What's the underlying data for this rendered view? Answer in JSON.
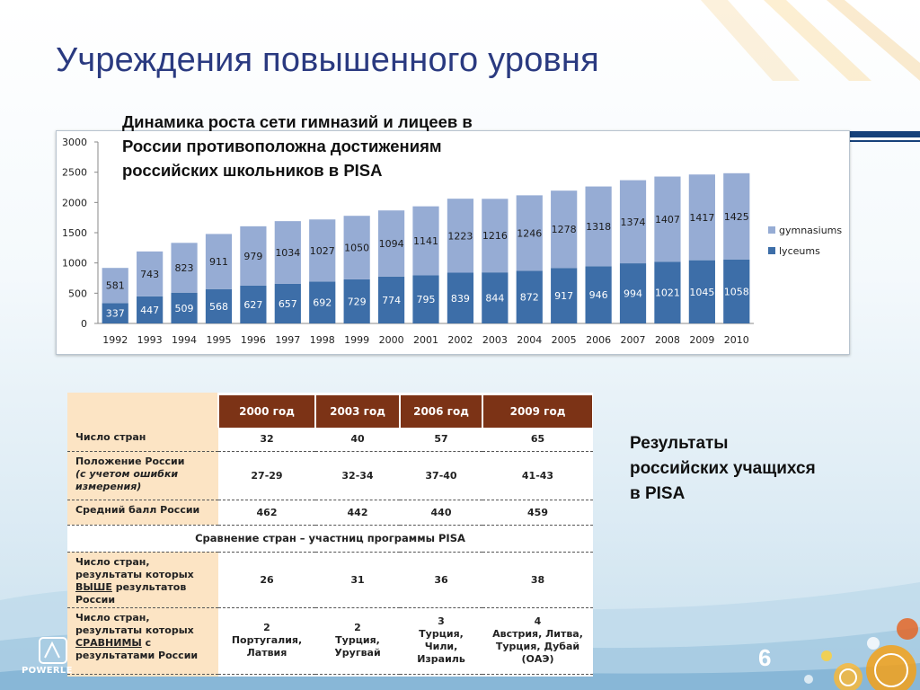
{
  "title": "Учреждения повышенного уровня",
  "chart_subtitle": "Динамика роста сети гимназий и лицеев в\nРоссии противоположна достижениям\nроссийских школьников в PISA",
  "chart_data": {
    "type": "bar",
    "stacked": true,
    "categories": [
      "1992",
      "1993",
      "1994",
      "1995",
      "1996",
      "1997",
      "1998",
      "1999",
      "2000",
      "2001",
      "2002",
      "2003",
      "2004",
      "2005",
      "2006",
      "2007",
      "2008",
      "2009",
      "2010"
    ],
    "series": [
      {
        "name": "lyceums",
        "color": "#3d6ea8",
        "values": [
          337,
          447,
          509,
          568,
          627,
          657,
          692,
          729,
          774,
          795,
          839,
          844,
          872,
          917,
          946,
          994,
          1021,
          1045,
          1058
        ]
      },
      {
        "name": "gymnasiums",
        "color": "#96acd4",
        "values": [
          581,
          743,
          823,
          911,
          979,
          1034,
          1027,
          1050,
          1094,
          1141,
          1223,
          1216,
          1246,
          1278,
          1318,
          1374,
          1407,
          1417,
          1425
        ]
      }
    ],
    "legend": [
      "gymnasiums",
      "lyceums"
    ],
    "legend_position": "right",
    "ylim": [
      0,
      3000
    ],
    "yticks": [
      "0",
      "500",
      "1000",
      "1500",
      "2000",
      "2500",
      "3000"
    ],
    "grid": false
  },
  "pisa_table": {
    "headers": [
      "2000 год",
      "2003 год",
      "2006 год",
      "2009 год"
    ],
    "rows": [
      {
        "label": "Число стран",
        "values": [
          "32",
          "40",
          "57",
          "65"
        ]
      },
      {
        "label": "Положение России",
        "label_note": "(с учетом ошибки измерения)",
        "values": [
          "27-29",
          "32-34",
          "37-40",
          "41-43"
        ]
      },
      {
        "label": "Средний балл России",
        "values": [
          "462",
          "442",
          "440",
          "459"
        ]
      }
    ],
    "section_title": "Сравнение стран – участниц программы PISA",
    "rows2": [
      {
        "label_pre": "Число стран, результаты которых ",
        "label_emph": "ВЫШЕ",
        "label_post": " результатов России",
        "values": [
          "26",
          "31",
          "36",
          "38"
        ]
      },
      {
        "label_pre": "Число стран, результаты которых ",
        "label_emph": "СРАВНИМЫ",
        "label_post": " с результатами России",
        "values": [
          "2\nПортугалия, Латвия",
          "2\nТурция, Уругвай",
          "3\nТурция, Чили, Израиль",
          "4\nАвстрия, Литва, Турция, Дубай (ОАЭ)"
        ]
      }
    ]
  },
  "results_caption": "Результаты\nроссийских учащихся\nв PISA",
  "page_number": "6",
  "logo_text": "POWERLE"
}
